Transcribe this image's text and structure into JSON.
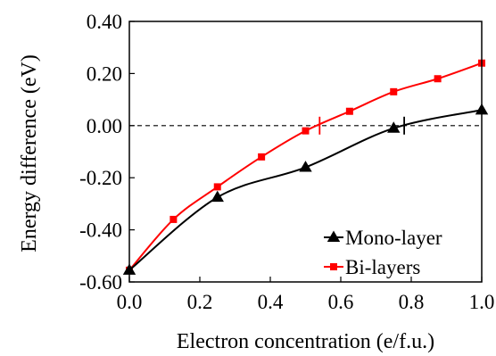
{
  "chart_data": {
    "type": "line",
    "xlabel": "Electron concentration (e/f.u.)",
    "ylabel": "Energy difference (eV)",
    "xlim": [
      0.0,
      1.0
    ],
    "ylim": [
      -0.6,
      0.4
    ],
    "x_ticks": [
      "0.0",
      "0.2",
      "0.4",
      "0.6",
      "0.8",
      "1.0"
    ],
    "y_ticks": [
      "0.40",
      "0.20",
      "0.00",
      "-0.20",
      "-0.40",
      "-0.60"
    ],
    "reference_line": {
      "y": 0.0,
      "style": "dashed"
    },
    "legend_position": "bottom-right",
    "series": [
      {
        "name": "Mono-layer",
        "color": "#000000",
        "marker": "triangle",
        "x": [
          0.0,
          0.25,
          0.5,
          0.75,
          1.0
        ],
        "y": [
          -0.555,
          -0.275,
          -0.16,
          -0.01,
          0.06
        ],
        "crossing_x": 0.78
      },
      {
        "name": "Bi-layers",
        "color": "#ff0000",
        "marker": "square",
        "x": [
          0.0,
          0.125,
          0.25,
          0.375,
          0.5,
          0.625,
          0.75,
          0.875,
          1.0
        ],
        "y": [
          -0.555,
          -0.36,
          -0.235,
          -0.12,
          -0.02,
          0.055,
          0.13,
          0.18,
          0.24
        ],
        "crossing_x": 0.54
      }
    ]
  }
}
